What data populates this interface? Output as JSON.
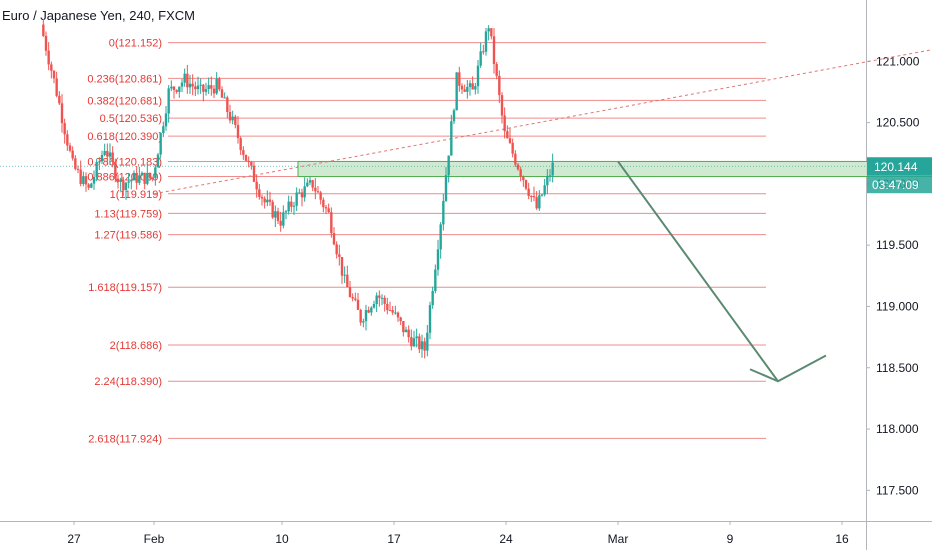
{
  "header": {
    "title": "Euro / Japanese Yen, 240, FXCM"
  },
  "chart_data": {
    "type": "candlestick",
    "title": "Euro / Japanese Yen, 240, FXCM",
    "ylim": [
      117.25,
      121.5
    ],
    "y_ticks": [
      "121.000",
      "120.500",
      "120.000",
      "119.500",
      "119.000",
      "118.500",
      "118.000",
      "117.500"
    ],
    "y_tick_values": [
      121.0,
      120.5,
      120.0,
      119.5,
      119.0,
      118.5,
      118.0,
      117.5
    ],
    "x_ticks": [
      "27",
      "Feb",
      "10",
      "17",
      "24",
      "Mar",
      "9",
      "16"
    ],
    "x_tick_days": [
      -4,
      1,
      9,
      16,
      23,
      30,
      37,
      44
    ],
    "last_price": "120.144",
    "last_price_value": 120.144,
    "countdown": "03:47:09",
    "fib_levels": [
      {
        "label": "0(121.152)",
        "value": 121.152
      },
      {
        "label": "0.236(120.861)",
        "value": 120.861
      },
      {
        "label": "0.382(120.681)",
        "value": 120.681
      },
      {
        "label": "0.5(120.536)",
        "value": 120.536
      },
      {
        "label": "0.618(120.390)",
        "value": 120.39
      },
      {
        "label": "0.786(120.183)",
        "value": 120.183
      },
      {
        "label": "0.886(120.060)",
        "value": 120.06
      },
      {
        "label": "1(119.919)",
        "value": 119.919
      },
      {
        "label": "1.13(119.759)",
        "value": 119.759
      },
      {
        "label": "1.27(119.586)",
        "value": 119.586
      },
      {
        "label": "1.618(119.157)",
        "value": 119.157
      },
      {
        "label": "2(118.686)",
        "value": 118.686
      },
      {
        "label": "2.24(118.390)",
        "value": 118.39
      },
      {
        "label": "2.618(117.924)",
        "value": 117.924
      }
    ],
    "zone": {
      "from_day": 10,
      "to_day": 52,
      "low": 120.06,
      "high": 120.183
    },
    "trend_line": {
      "from": [
        1,
        119.919
      ],
      "to": [
        52,
        121.152
      ]
    },
    "projection_arrow": [
      [
        30,
        120.183
      ],
      [
        40,
        118.39
      ],
      [
        43,
        118.6
      ]
    ],
    "candles_path": [
      [
        -6,
        121.3
      ],
      [
        -5,
        120.75
      ],
      [
        -4,
        120.15
      ],
      [
        -3,
        119.95
      ],
      [
        -2,
        120.3
      ],
      [
        -1,
        120.0
      ],
      [
        0,
        120.05
      ],
      [
        1,
        120.05
      ],
      [
        2,
        120.75
      ],
      [
        3,
        120.85
      ],
      [
        4,
        120.75
      ],
      [
        5,
        120.8
      ],
      [
        6,
        120.5
      ],
      [
        7,
        120.15
      ],
      [
        8,
        119.85
      ],
      [
        9,
        119.7
      ],
      [
        10,
        119.9
      ],
      [
        11,
        120.0
      ],
      [
        12,
        119.75
      ],
      [
        13,
        119.2
      ],
      [
        14,
        118.9
      ],
      [
        15,
        119.1
      ],
      [
        16,
        118.95
      ],
      [
        17,
        118.75
      ],
      [
        18,
        118.65
      ],
      [
        19,
        119.7
      ],
      [
        20,
        120.85
      ],
      [
        21,
        120.75
      ],
      [
        22,
        121.3
      ],
      [
        23,
        120.4
      ],
      [
        24,
        120.1
      ],
      [
        25,
        119.8
      ],
      [
        26,
        120.144
      ]
    ],
    "colors": {
      "up": "#26a69a",
      "down": "#ef5350",
      "fib": "#f08c8c",
      "zone": "#c8e6c9",
      "zone_border": "#4caf50",
      "arrow": "#5b8a72",
      "trend": "#e57373"
    }
  }
}
